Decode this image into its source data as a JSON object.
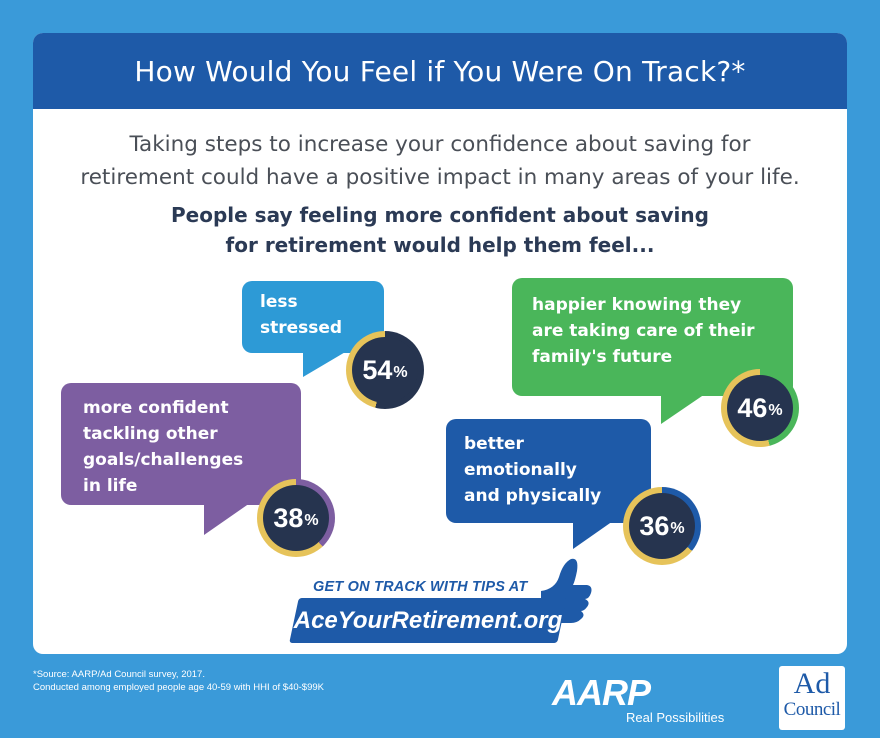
{
  "header": {
    "title": "How Would You Feel if You Were On Track?*"
  },
  "intro": {
    "line1": "Taking steps to increase your confidence about saving for",
    "line2": "retirement could have a positive impact in many areas of your life."
  },
  "lead": {
    "line1": "People say feeling more confident about saving",
    "line2": "for retirement would help them feel..."
  },
  "bubbles": [
    {
      "lines": [
        "less",
        "stressed"
      ],
      "percent": "54",
      "sign": "%",
      "value": 54,
      "color": "#2d9ad6"
    },
    {
      "lines": [
        "happier knowing they",
        "are taking care of their",
        "family's future"
      ],
      "percent": "46",
      "sign": "%",
      "value": 46,
      "color": "#4ab65a"
    },
    {
      "lines": [
        "more confident",
        "tackling other",
        "goals/challenges",
        "in life"
      ],
      "percent": "38",
      "sign": "%",
      "value": 38,
      "color": "#7d5ea1"
    },
    {
      "lines": [
        "better",
        "emotionally",
        "and physically"
      ],
      "percent": "36",
      "sign": "%",
      "value": 36,
      "color": "#1e5aa8"
    }
  ],
  "cta": {
    "line1": "GET ON TRACK WITH TIPS AT",
    "url": "AceYourRetirement.org"
  },
  "footnote": {
    "line1": "*Source: AARP/Ad Council survey, 2017.",
    "line2": "Conducted among employed people age 40-59 with HHI of $40-$99K"
  },
  "logos": {
    "aarp": "AARP",
    "aarp_tagline": "Real Possibilities",
    "adcouncil_top": "Ad",
    "adcouncil_bottom": "Council"
  },
  "colors": {
    "background": "#3a9ad9",
    "header": "#1e5aa8",
    "ring_gold": "#e6c35a",
    "ring_dark": "#26344f"
  }
}
